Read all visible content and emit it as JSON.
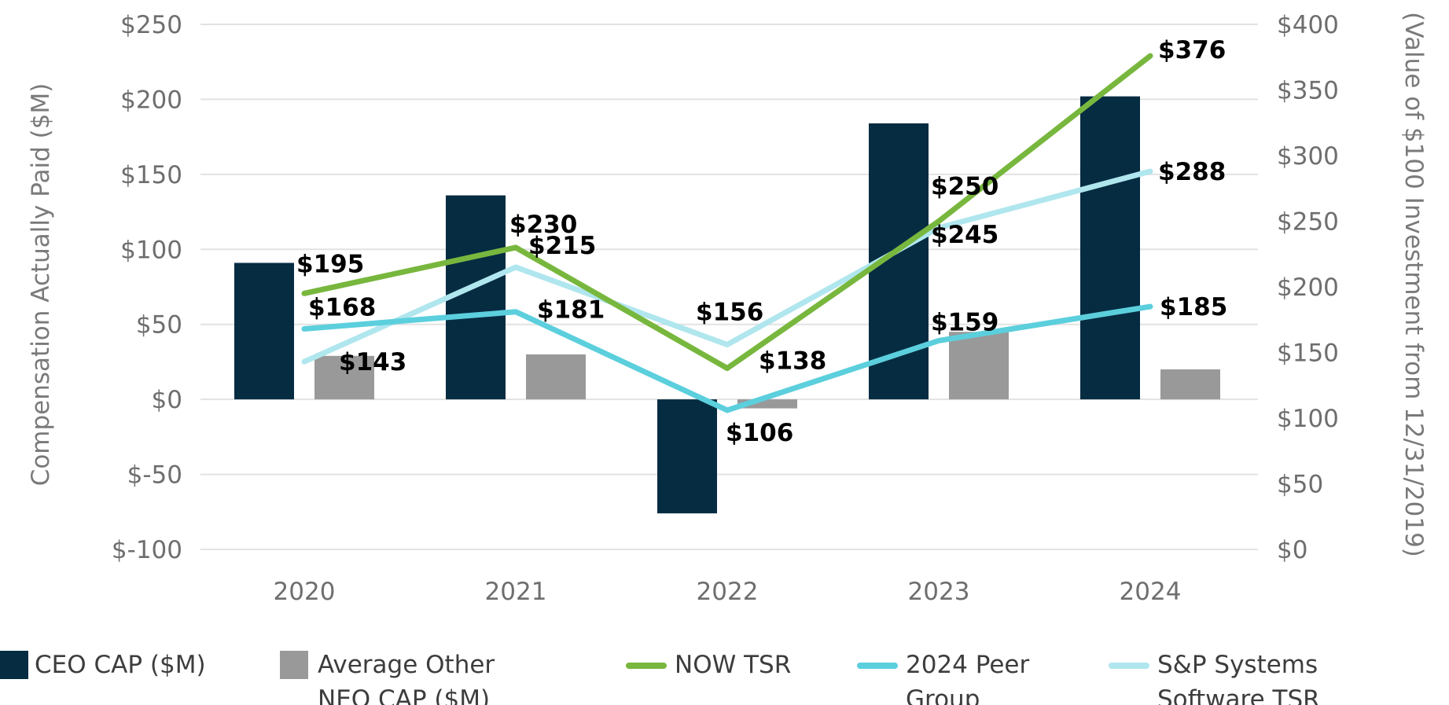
{
  "chart_data": {
    "type": "bar+line",
    "categories": [
      "2020",
      "2021",
      "2022",
      "2023",
      "2024"
    ],
    "y_left": {
      "label": "Compensation Actually Paid ($M)",
      "range": [
        -100,
        250
      ],
      "ticks": [
        -100,
        -50,
        0,
        50,
        100,
        150,
        200,
        250
      ],
      "tick_labels": [
        "$-100",
        "$-50",
        "$0",
        "$50",
        "$100",
        "$150",
        "$200",
        "$250"
      ]
    },
    "y_right": {
      "label": "(Value of $100 Investment from 12/31/2019)",
      "range": [
        0,
        400
      ],
      "ticks": [
        0,
        50,
        100,
        150,
        200,
        250,
        300,
        350,
        400
      ],
      "tick_labels": [
        "$0",
        "$50",
        "$100",
        "$150",
        "$200",
        "$250",
        "$300",
        "$350",
        "$400"
      ]
    },
    "bars": [
      {
        "name": "CEO CAP ($M)",
        "color": "#062c42",
        "values": [
          91,
          136,
          -76,
          184,
          202
        ]
      },
      {
        "name": "Average Other NEO CAP ($M)",
        "color": "#999999",
        "values": [
          29,
          30,
          -6,
          45,
          20
        ]
      }
    ],
    "lines": [
      {
        "name": "NOW TSR",
        "color": "#78b73e",
        "values": [
          195,
          230,
          138,
          250,
          376
        ],
        "labels": [
          "$195",
          "$230",
          "$138",
          "$250",
          "$376"
        ]
      },
      {
        "name": "2024 Peer Group",
        "color": "#5ccfdd",
        "values": [
          168,
          181,
          106,
          159,
          185
        ],
        "labels": [
          "$168",
          "$181",
          "$106",
          "$159",
          "$185"
        ]
      },
      {
        "name": "S&P Systems Software TSR",
        "color": "#b0e6ee",
        "values": [
          143,
          215,
          156,
          245,
          288
        ],
        "labels": [
          "$143",
          "$215",
          "$156",
          "$245",
          "$288"
        ]
      }
    ],
    "legend": {
      "position": "bottom",
      "items": [
        {
          "type": "box",
          "color": "#062c42",
          "lines": [
            "CEO CAP ($M)"
          ]
        },
        {
          "type": "box",
          "color": "#999999",
          "lines": [
            "Average Other",
            "NEO CAP ($M)"
          ]
        },
        {
          "type": "line",
          "color": "#78b73e",
          "lines": [
            "NOW TSR"
          ]
        },
        {
          "type": "line",
          "color": "#5ccfdd",
          "lines": [
            "2024 Peer",
            "Group"
          ]
        },
        {
          "type": "line",
          "color": "#b0e6ee",
          "lines": [
            "S&P Systems",
            "Software TSR"
          ]
        }
      ]
    },
    "grid": true
  }
}
